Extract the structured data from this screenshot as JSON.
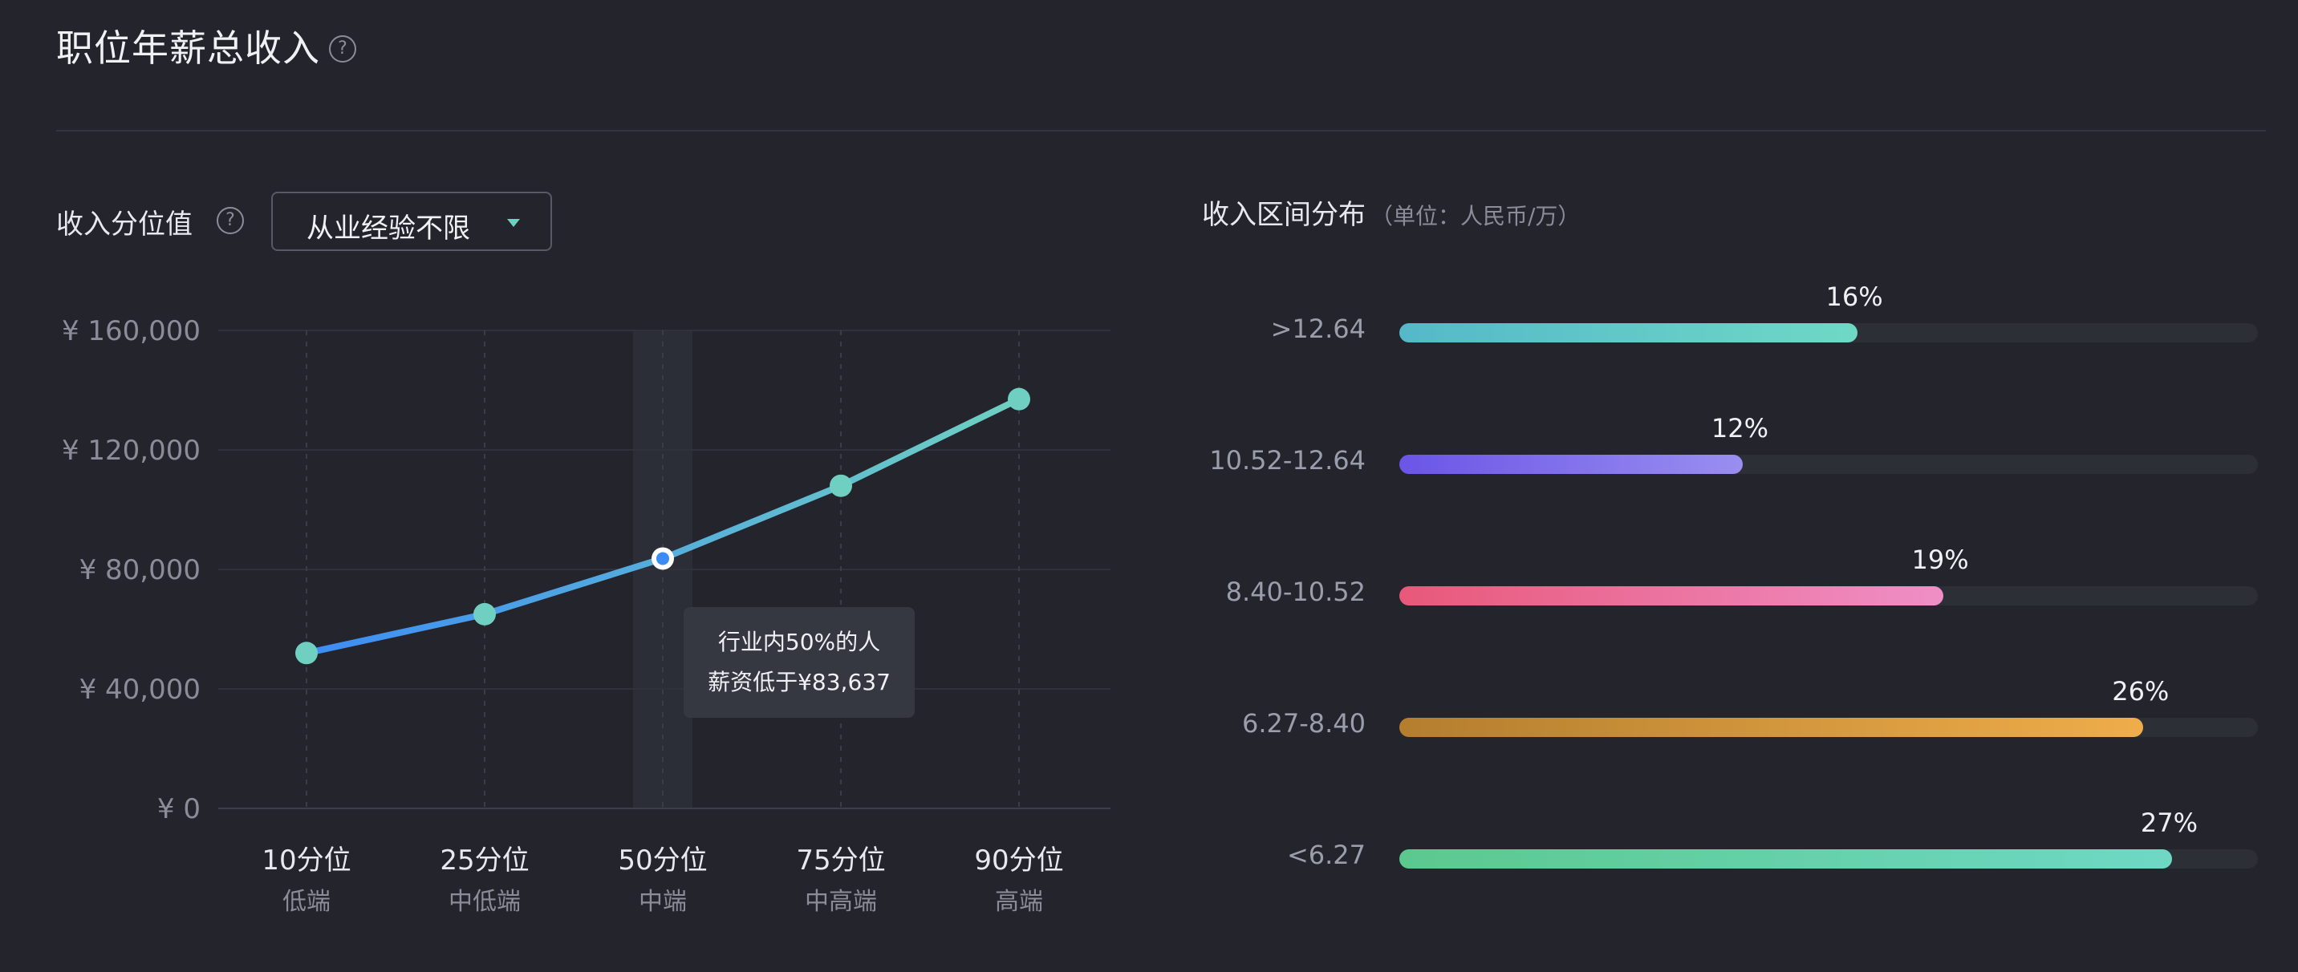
{
  "page": {
    "title": "职位年薪总收入",
    "help_glyph": "?"
  },
  "left_panel": {
    "label": "收入分位值",
    "dropdown_value": "从业经验不限"
  },
  "right_panel": {
    "title": "收入区间分布",
    "unit": "（单位：人民币/万）"
  },
  "chart_data": [
    {
      "type": "line",
      "categories": [
        "10分位",
        "25分位",
        "50分位",
        "75分位",
        "90分位"
      ],
      "sublabels": [
        "低端",
        "中低端",
        "中端",
        "中高端",
        "高端"
      ],
      "values": [
        52000,
        65000,
        83637,
        108000,
        137000
      ],
      "ylim": [
        0,
        160000
      ],
      "yticks": [
        0,
        40000,
        80000,
        120000,
        160000
      ],
      "ytick_labels": [
        "¥ 0",
        "¥ 40,000",
        "¥ 80,000",
        "¥ 120,000",
        "¥ 160,000"
      ],
      "highlight_index": 2,
      "tooltip": [
        "行业内50%的人",
        "薪资低于¥83,637"
      ],
      "colors": {
        "start": "#3d8cf5",
        "end": "#6fd0c1",
        "point": "#6fd0c1"
      },
      "grid": true
    },
    {
      "type": "bar",
      "orientation": "horizontal",
      "categories": [
        ">12.64",
        "10.52-12.64",
        "8.40-10.52",
        "6.27-8.40",
        "<6.27"
      ],
      "values": [
        16,
        12,
        19,
        26,
        27
      ],
      "value_labels": [
        "16%",
        "12%",
        "19%",
        "26%",
        "27%"
      ],
      "max": 30,
      "colors": [
        [
          "#55b8c9",
          "#6fd8c5"
        ],
        [
          "#6a55e8",
          "#9a8ef0"
        ],
        [
          "#e8587a",
          "#ef8fc6"
        ],
        [
          "#b47e2e",
          "#efad4a"
        ],
        [
          "#5bc98e",
          "#6fd8c5"
        ]
      ]
    }
  ]
}
